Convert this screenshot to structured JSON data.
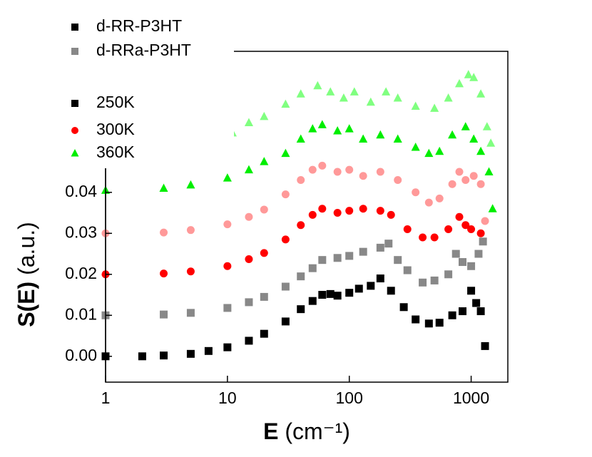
{
  "chart_data": {
    "type": "scatter",
    "xlabel": {
      "symbol": "E",
      "unit": "(cm⁻¹)"
    },
    "ylabel": {
      "symbol": "S(E)",
      "unit": "(a.u.)"
    },
    "xscale": "log",
    "xlim": [
      1,
      2000
    ],
    "ylim": [
      -0.0063,
      0.0744
    ],
    "xticks": [
      1,
      10,
      100,
      1000
    ],
    "yticks": [
      {
        "value": 0,
        "label": "0.00"
      },
      {
        "value": 0.01,
        "label": "0.01"
      },
      {
        "value": 0.02,
        "label": "0.02"
      },
      {
        "value": 0.03,
        "label": "0.03"
      },
      {
        "value": 0.04,
        "label": "0.04"
      }
    ],
    "legend": [
      {
        "label": "d-RR-P3HT",
        "color": "#000000",
        "marker": "square"
      },
      {
        "label": "d-RRa-P3HT",
        "color": "#888888",
        "marker": "square"
      },
      {
        "label": "250K",
        "color": "#000000",
        "marker": "square"
      },
      {
        "label": "300K",
        "color": "#ff0000",
        "marker": "circle"
      },
      {
        "label": "360K",
        "color": "#00ee00",
        "marker": "triangle"
      }
    ],
    "series": [
      {
        "color": "#000000",
        "marker": "square",
        "x": [
          1,
          2,
          3,
          5,
          7,
          10,
          15,
          20,
          30,
          40,
          50,
          60,
          70,
          80,
          100,
          120,
          150,
          180,
          220,
          280,
          350,
          450,
          550,
          700,
          850,
          1000,
          1100,
          1200,
          1300
        ],
        "values": [
          0.0,
          0.0,
          0.0002,
          0.0006,
          0.0013,
          0.0022,
          0.0038,
          0.0055,
          0.0085,
          0.0115,
          0.0135,
          0.015,
          0.0152,
          0.0148,
          0.0155,
          0.0165,
          0.0172,
          0.019,
          0.016,
          0.012,
          0.009,
          0.008,
          0.0082,
          0.01,
          0.011,
          0.016,
          0.013,
          0.011,
          0.0025
        ]
      },
      {
        "color": "#888888",
        "marker": "square",
        "x": [
          1,
          3,
          5,
          10,
          15,
          20,
          30,
          40,
          50,
          60,
          80,
          100,
          130,
          180,
          210,
          250,
          300,
          400,
          500,
          650,
          750,
          850,
          1000,
          1150,
          1250
        ],
        "values": [
          0.01,
          0.0102,
          0.0106,
          0.0118,
          0.0132,
          0.0145,
          0.017,
          0.0195,
          0.0215,
          0.0235,
          0.024,
          0.0245,
          0.0255,
          0.0265,
          0.0275,
          0.0235,
          0.021,
          0.018,
          0.0185,
          0.02,
          0.025,
          0.023,
          0.022,
          0.025,
          0.028
        ]
      },
      {
        "color": "#ff0000",
        "marker": "circle",
        "x": [
          1,
          3,
          5,
          10,
          15,
          20,
          30,
          40,
          50,
          60,
          80,
          100,
          130,
          180,
          220,
          300,
          400,
          500,
          650,
          800,
          900,
          1000,
          1200
        ],
        "values": [
          0.02,
          0.0202,
          0.0207,
          0.022,
          0.0237,
          0.0252,
          0.0285,
          0.032,
          0.0345,
          0.036,
          0.035,
          0.0355,
          0.036,
          0.0355,
          0.0345,
          0.031,
          0.029,
          0.029,
          0.031,
          0.034,
          0.032,
          0.031,
          0.03
        ]
      },
      {
        "color": "#ff9999",
        "marker": "circle",
        "x": [
          1,
          3,
          5,
          10,
          15,
          20,
          30,
          40,
          50,
          60,
          80,
          100,
          130,
          180,
          250,
          350,
          450,
          550,
          700,
          800,
          900,
          1050,
          1200,
          1300
        ],
        "values": [
          0.03,
          0.0302,
          0.0308,
          0.0322,
          0.034,
          0.0358,
          0.0395,
          0.043,
          0.0455,
          0.0465,
          0.045,
          0.0455,
          0.044,
          0.045,
          0.043,
          0.04,
          0.0375,
          0.0385,
          0.042,
          0.045,
          0.043,
          0.044,
          0.042,
          0.033
        ]
      },
      {
        "color": "#00ee00",
        "marker": "triangle",
        "x": [
          1,
          3,
          5,
          10,
          15,
          20,
          30,
          40,
          50,
          60,
          80,
          100,
          130,
          180,
          250,
          350,
          450,
          550,
          700,
          900,
          1050,
          1200,
          1400,
          1500
        ],
        "values": [
          0.0405,
          0.041,
          0.0418,
          0.0435,
          0.0455,
          0.0475,
          0.0495,
          0.053,
          0.0555,
          0.0565,
          0.055,
          0.0555,
          0.053,
          0.054,
          0.053,
          0.051,
          0.0495,
          0.05,
          0.054,
          0.056,
          0.053,
          0.05,
          0.045,
          0.036
        ]
      },
      {
        "color": "#80ff80",
        "marker": "triangle",
        "x": [
          11,
          15,
          20,
          30,
          40,
          55,
          70,
          90,
          110,
          150,
          200,
          250,
          350,
          500,
          650,
          800,
          950,
          1050,
          1200,
          1350,
          1450
        ],
        "values": [
          0.0545,
          0.057,
          0.0585,
          0.0615,
          0.064,
          0.066,
          0.0645,
          0.063,
          0.0645,
          0.062,
          0.0645,
          0.063,
          0.061,
          0.0605,
          0.063,
          0.0665,
          0.0687,
          0.068,
          0.064,
          0.056,
          0.052
        ]
      }
    ]
  }
}
